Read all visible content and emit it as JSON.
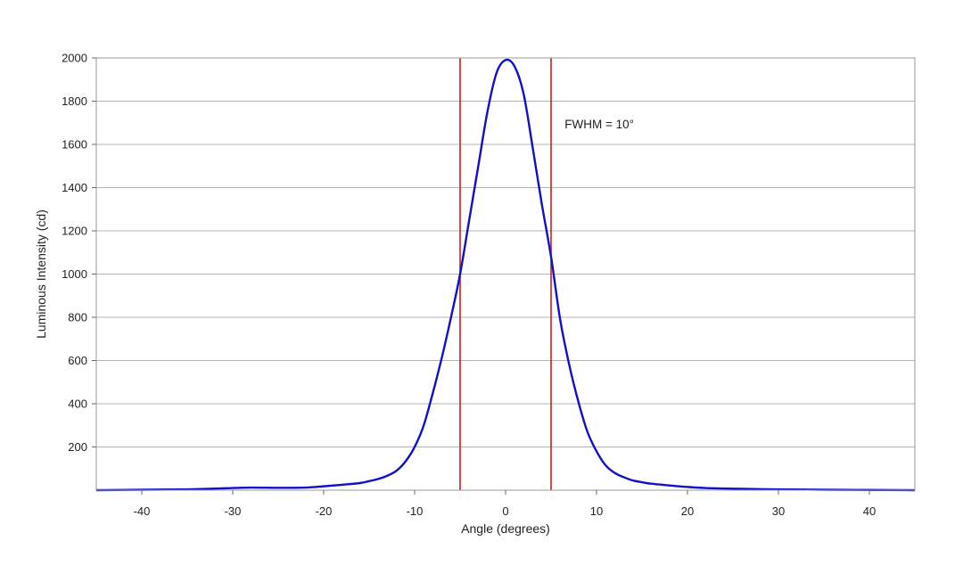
{
  "chart_data": {
    "type": "line",
    "title": "",
    "xlabel": "Angle (degrees)",
    "ylabel": "Luminous Intensity (cd)",
    "xlim": [
      -45,
      45
    ],
    "ylim": [
      0,
      2000
    ],
    "x_ticks": [
      -40,
      -30,
      -20,
      -10,
      0,
      10,
      20,
      30,
      40
    ],
    "y_ticks": [
      200,
      400,
      600,
      800,
      1000,
      1200,
      1400,
      1600,
      1800,
      2000
    ],
    "grid": "horizontal",
    "legend": "none",
    "series": [
      {
        "color": "#1010c8",
        "x": [
          -45,
          -40,
          -35,
          -30,
          -28,
          -25,
          -22,
          -20,
          -18,
          -16,
          -15,
          -14,
          -13,
          -12,
          -11,
          -10,
          -9,
          -8,
          -7,
          -6,
          -5,
          -4,
          -3,
          -2,
          -1,
          0,
          1,
          2,
          3,
          4,
          5,
          6,
          7,
          8,
          9,
          10,
          11,
          12,
          13,
          14,
          15,
          16,
          18,
          20,
          22,
          25,
          28,
          30,
          35,
          40,
          45
        ],
        "y": [
          0,
          2,
          4,
          10,
          12,
          11,
          12,
          18,
          25,
          33,
          42,
          52,
          67,
          90,
          133,
          200,
          300,
          450,
          615,
          800,
          1000,
          1250,
          1500,
          1750,
          1930,
          1990,
          1960,
          1830,
          1580,
          1320,
          1080,
          790,
          580,
          410,
          270,
          180,
          115,
          80,
          60,
          45,
          37,
          30,
          22,
          15,
          10,
          7,
          5,
          4,
          2,
          1,
          0
        ]
      }
    ],
    "markers": [
      {
        "x": -5,
        "color": "#c81e1e"
      },
      {
        "x": 5,
        "color": "#c81e1e"
      }
    ],
    "annotations": [
      {
        "text": "FWHM = 10°",
        "x": 6.5,
        "y": 1690
      }
    ]
  }
}
